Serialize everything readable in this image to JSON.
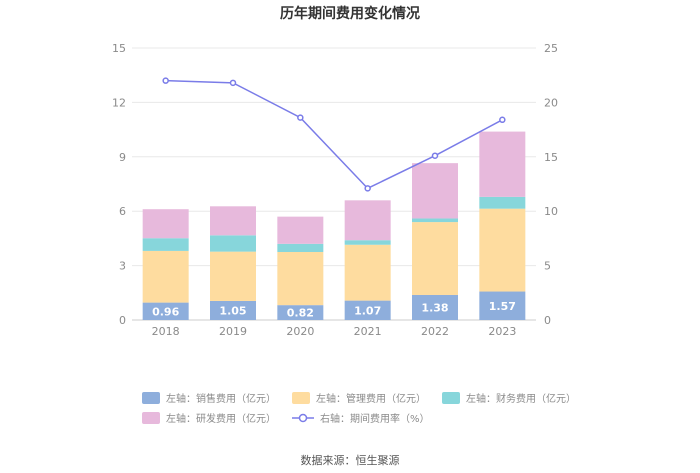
{
  "chart_data": {
    "type": "bar",
    "title": "历年期间费用变化情况",
    "categories": [
      "2018",
      "2019",
      "2020",
      "2021",
      "2022",
      "2023"
    ],
    "series": [
      {
        "name": "左轴：销售费用（亿元）",
        "axis": "left",
        "stack": true,
        "color": "#8eaedc",
        "values": [
          0.96,
          1.05,
          0.82,
          1.07,
          1.38,
          1.57
        ],
        "labels": [
          "0.96",
          "1.05",
          "0.82",
          "1.07",
          "1.38",
          "1.57"
        ]
      },
      {
        "name": "左轴：管理费用（亿元）",
        "axis": "left",
        "stack": true,
        "color": "#fedc9f",
        "values": [
          2.85,
          2.72,
          2.93,
          3.08,
          4.02,
          4.57
        ]
      },
      {
        "name": "左轴：财务费用（亿元）",
        "axis": "left",
        "stack": true,
        "color": "#87d6db",
        "values": [
          0.7,
          0.9,
          0.45,
          0.25,
          0.2,
          0.65
        ]
      },
      {
        "name": "左轴：研发费用（亿元）",
        "axis": "left",
        "stack": true,
        "color": "#e7b9dc",
        "values": [
          1.6,
          1.6,
          1.5,
          2.2,
          3.05,
          3.6
        ]
      },
      {
        "name": "右轴：期间费用率（%）",
        "axis": "right",
        "type": "line",
        "color": "#7a7ce8",
        "values": [
          22.0,
          21.8,
          18.6,
          12.1,
          15.1,
          18.4
        ]
      }
    ],
    "left_axis": {
      "ylim": [
        0,
        15
      ],
      "ticks": [
        "0",
        "3",
        "6",
        "9",
        "12",
        "15"
      ]
    },
    "right_axis": {
      "ylim": [
        0,
        25
      ],
      "ticks": [
        "0",
        "5",
        "10",
        "15",
        "20",
        "25"
      ]
    },
    "grid": true,
    "legend_position": "bottom"
  },
  "source": "数据来源：恒生聚源"
}
